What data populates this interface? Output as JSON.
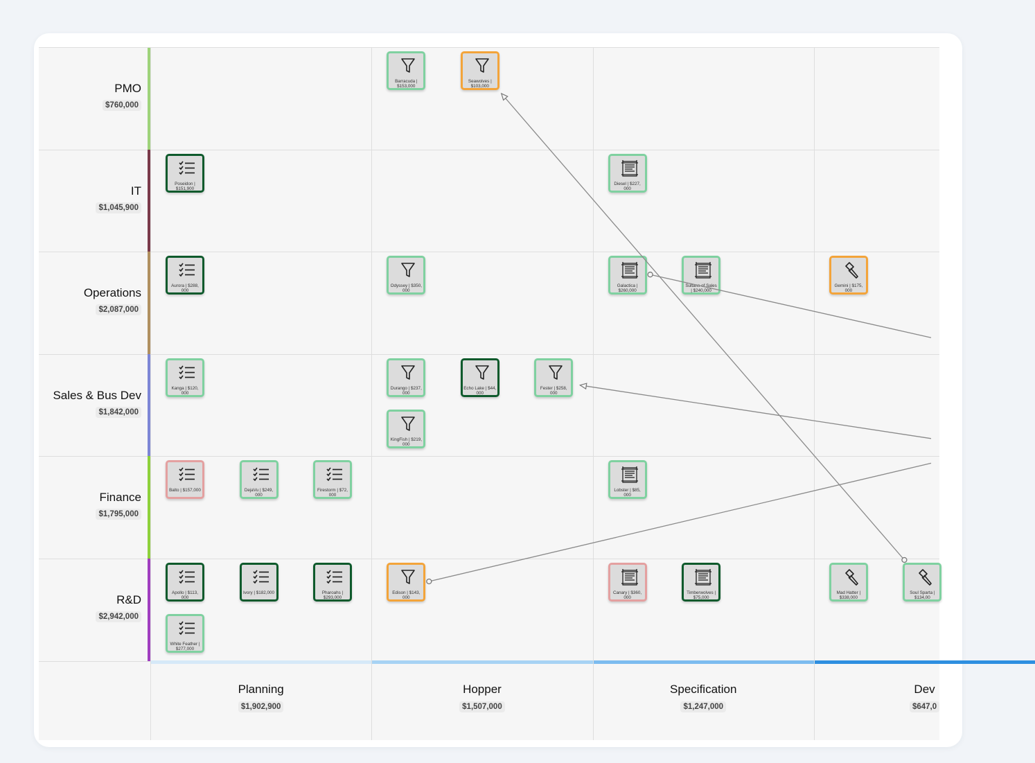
{
  "lanes": [
    {
      "name": "PMO",
      "total": "$760,000",
      "color": "#9ed37a"
    },
    {
      "name": "IT",
      "total": "$1,045,900",
      "color": "#7a3a4a"
    },
    {
      "name": "Operations",
      "total": "$2,087,000",
      "color": "#b09060"
    },
    {
      "name": "Sales & Bus Dev",
      "total": "$1,842,000",
      "color": "#7d86d6"
    },
    {
      "name": "Finance",
      "total": "$1,795,000",
      "color": "#8ed13b"
    },
    {
      "name": "R&D",
      "total": "$2,942,000",
      "color": "#a03ec0"
    }
  ],
  "stages": [
    {
      "name": "Planning",
      "total": "$1,902,900",
      "color": "#d6e9f8"
    },
    {
      "name": "Hopper",
      "total": "$1,507,000",
      "color": "#a7d3f4"
    },
    {
      "name": "Specification",
      "total": "$1,247,000",
      "color": "#7cbcef"
    },
    {
      "name": "Dev",
      "total": "$647,0",
      "color": "#2e8fe0"
    }
  ],
  "cards": [
    {
      "id": "barracuda",
      "label": "Barracuda | $153,000",
      "lane": 0,
      "stage": 1,
      "slot": 0,
      "row": 0,
      "border": "light",
      "icon": "funnel-icon"
    },
    {
      "id": "seawolves",
      "label": "Seawolves | $103,000",
      "lane": 0,
      "stage": 1,
      "slot": 1,
      "row": 0,
      "border": "orange",
      "icon": "funnel-icon"
    },
    {
      "id": "poseidon",
      "label": "Poseidon | $151,900",
      "lane": 1,
      "stage": 0,
      "slot": 0,
      "row": 0,
      "border": "dark",
      "icon": "checklist-icon"
    },
    {
      "id": "diesel",
      "label": "Diesel | $227, 000",
      "lane": 1,
      "stage": 2,
      "slot": 0,
      "row": 0,
      "border": "light",
      "icon": "blueprint-icon"
    },
    {
      "id": "aurora",
      "label": "Aurora | $288, 000",
      "lane": 2,
      "stage": 0,
      "slot": 0,
      "row": 0,
      "border": "dark",
      "icon": "checklist-icon"
    },
    {
      "id": "odyssey",
      "label": "Odyssey | $350, 000",
      "lane": 2,
      "stage": 1,
      "slot": 0,
      "row": 0,
      "border": "light",
      "icon": "funnel-icon"
    },
    {
      "id": "galactica",
      "label": "Galactica | $260,000",
      "lane": 2,
      "stage": 2,
      "slot": 0,
      "row": 0,
      "border": "light",
      "icon": "blueprint-icon"
    },
    {
      "id": "sultans",
      "label": "Sultans of Sales | $240,000",
      "lane": 2,
      "stage": 2,
      "slot": 1,
      "row": 0,
      "border": "light",
      "icon": "blueprint-icon"
    },
    {
      "id": "gemini",
      "label": "Gemini | $175, 000",
      "lane": 2,
      "stage": 3,
      "slot": 0,
      "row": 0,
      "border": "orange",
      "icon": "hammer-icon"
    },
    {
      "id": "kanga",
      "label": "Kanga | $120, 000",
      "lane": 3,
      "stage": 0,
      "slot": 0,
      "row": 0,
      "border": "light",
      "icon": "checklist-icon"
    },
    {
      "id": "durango",
      "label": "Durango | $237, 000",
      "lane": 3,
      "stage": 1,
      "slot": 0,
      "row": 0,
      "border": "light",
      "icon": "funnel-icon"
    },
    {
      "id": "echolake",
      "label": "Echo Lake | $44, 000",
      "lane": 3,
      "stage": 1,
      "slot": 1,
      "row": 0,
      "border": "dark",
      "icon": "funnel-icon"
    },
    {
      "id": "fester",
      "label": "Fester | $258, 000",
      "lane": 3,
      "stage": 1,
      "slot": 2,
      "row": 0,
      "border": "light",
      "icon": "funnel-icon"
    },
    {
      "id": "kingfish",
      "label": "KingFish | $219, 000",
      "lane": 3,
      "stage": 1,
      "slot": 0,
      "row": 1,
      "border": "light",
      "icon": "funnel-icon"
    },
    {
      "id": "balto",
      "label": "Balto | $157,000",
      "lane": 4,
      "stage": 0,
      "slot": 0,
      "row": 0,
      "border": "red",
      "icon": "checklist-icon"
    },
    {
      "id": "dejavu",
      "label": "DejaVu | $249, 000",
      "lane": 4,
      "stage": 0,
      "slot": 1,
      "row": 0,
      "border": "light",
      "icon": "checklist-icon"
    },
    {
      "id": "firestorm",
      "label": "Firestorm | $72, 000",
      "lane": 4,
      "stage": 0,
      "slot": 2,
      "row": 0,
      "border": "light",
      "icon": "checklist-icon"
    },
    {
      "id": "lobster",
      "label": "Lobster | $85, 000",
      "lane": 4,
      "stage": 2,
      "slot": 0,
      "row": 0,
      "border": "light",
      "icon": "blueprint-icon"
    },
    {
      "id": "apollo",
      "label": "Apollo | $113, 000",
      "lane": 5,
      "stage": 0,
      "slot": 0,
      "row": 0,
      "border": "dark",
      "icon": "checklist-icon"
    },
    {
      "id": "ivory",
      "label": "Ivory | $182,000",
      "lane": 5,
      "stage": 0,
      "slot": 1,
      "row": 0,
      "border": "dark",
      "icon": "checklist-icon"
    },
    {
      "id": "pharoahs",
      "label": "Pharoahs | $293,000",
      "lane": 5,
      "stage": 0,
      "slot": 2,
      "row": 0,
      "border": "dark",
      "icon": "checklist-icon"
    },
    {
      "id": "whitefeather",
      "label": "White Feather | $277,000",
      "lane": 5,
      "stage": 0,
      "slot": 0,
      "row": 1,
      "border": "light",
      "icon": "checklist-icon"
    },
    {
      "id": "edison",
      "label": "Edison | $143, 000",
      "lane": 5,
      "stage": 1,
      "slot": 0,
      "row": 0,
      "border": "orange",
      "icon": "funnel-icon"
    },
    {
      "id": "canary",
      "label": "Canary | $360, 000",
      "lane": 5,
      "stage": 2,
      "slot": 0,
      "row": 0,
      "border": "red",
      "icon": "blueprint-icon"
    },
    {
      "id": "timberwolves",
      "label": "Timberwolves | $75,000",
      "lane": 5,
      "stage": 2,
      "slot": 1,
      "row": 0,
      "border": "dark",
      "icon": "blueprint-icon"
    },
    {
      "id": "madhatter",
      "label": "Mad Hatter | $338,000",
      "lane": 5,
      "stage": 3,
      "slot": 0,
      "row": 0,
      "border": "light",
      "icon": "hammer-icon"
    },
    {
      "id": "soulspartans",
      "label": "Soul Sparta | $134,00",
      "lane": 5,
      "stage": 3,
      "slot": 1,
      "row": 0,
      "border": "light",
      "icon": "hammer-icon"
    }
  ],
  "dependencies": [
    {
      "from": "soulspartans",
      "to": "seawolves"
    },
    {
      "from": "galactica",
      "to": "offscreen-right-operations"
    },
    {
      "from": "offscreen-right-sales",
      "to": "fester"
    },
    {
      "from": "edison",
      "to": "offscreen-right-finance"
    }
  ]
}
